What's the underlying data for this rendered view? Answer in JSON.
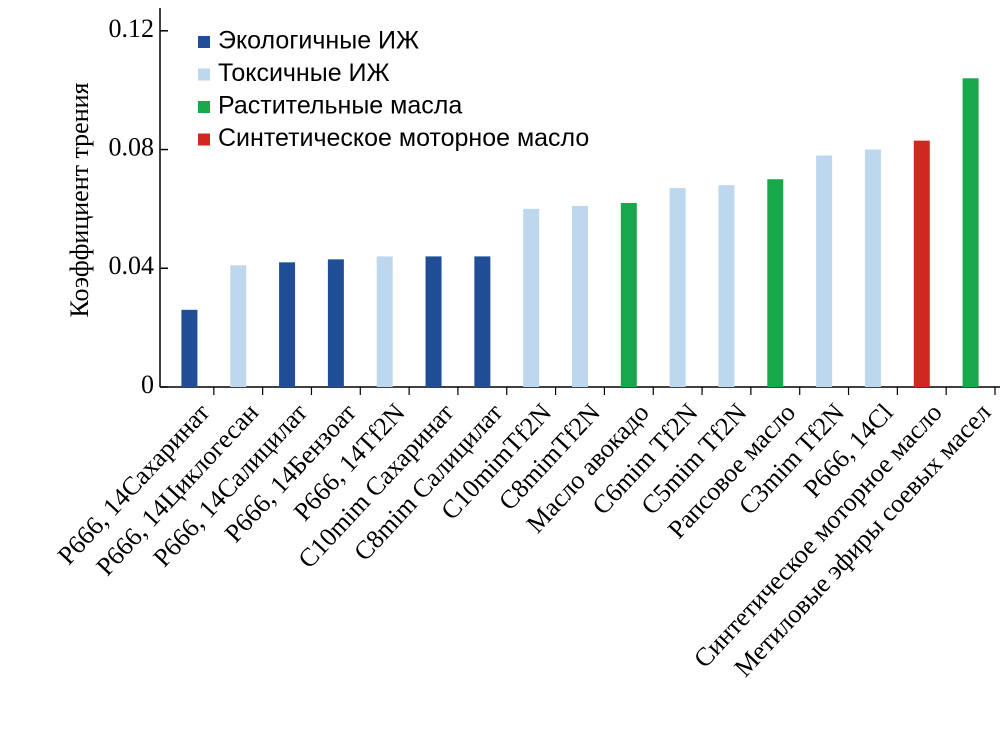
{
  "chart_data": {
    "type": "bar",
    "y_label": "Коэффициент трения",
    "categories": [
      "P666, 14Сахаринат",
      "P666, 14Циклогесан",
      "P666, 14Салицилат",
      "P666, 14Бензоат",
      "P666, 14Tf2N",
      "C10mim Сахаринат",
      "C8mim Салицилат",
      "C10mimTf2N",
      "C8mimTf2N",
      "Масло авокадо",
      "C6mim Tf2N",
      "C5mim Tf2N",
      "Рапсовое масло",
      "C3mim Tf2N",
      "P666, 14Cl",
      "Синтетическое моторное масло",
      "Метиловые эфиры соевых масел"
    ],
    "series": [
      {
        "name": "Экологичные ИЖ",
        "color": "#1f4e96",
        "values": [
          0.026,
          null,
          0.042,
          0.043,
          null,
          0.044,
          0.044,
          null,
          null,
          null,
          null,
          null,
          null,
          null,
          null,
          null,
          null
        ]
      },
      {
        "name": "Токсичные ИЖ",
        "color": "#bdd7ee",
        "values": [
          null,
          0.041,
          null,
          null,
          0.044,
          null,
          null,
          0.06,
          0.061,
          null,
          0.067,
          0.068,
          null,
          0.078,
          0.08,
          null,
          null
        ]
      },
      {
        "name": "Растительные масла",
        "color": "#16a84a",
        "values": [
          null,
          null,
          null,
          null,
          null,
          null,
          null,
          null,
          null,
          0.062,
          null,
          null,
          0.07,
          null,
          null,
          null,
          0.104
        ]
      },
      {
        "name": "Синтетическое моторное масло",
        "color": "#d0281e",
        "values": [
          null,
          null,
          null,
          null,
          null,
          null,
          null,
          null,
          null,
          null,
          null,
          null,
          null,
          null,
          null,
          0.083,
          null
        ]
      }
    ],
    "ylim": [
      0,
      0.126
    ],
    "yticks": [
      0,
      0.04,
      0.08,
      0.12
    ]
  }
}
